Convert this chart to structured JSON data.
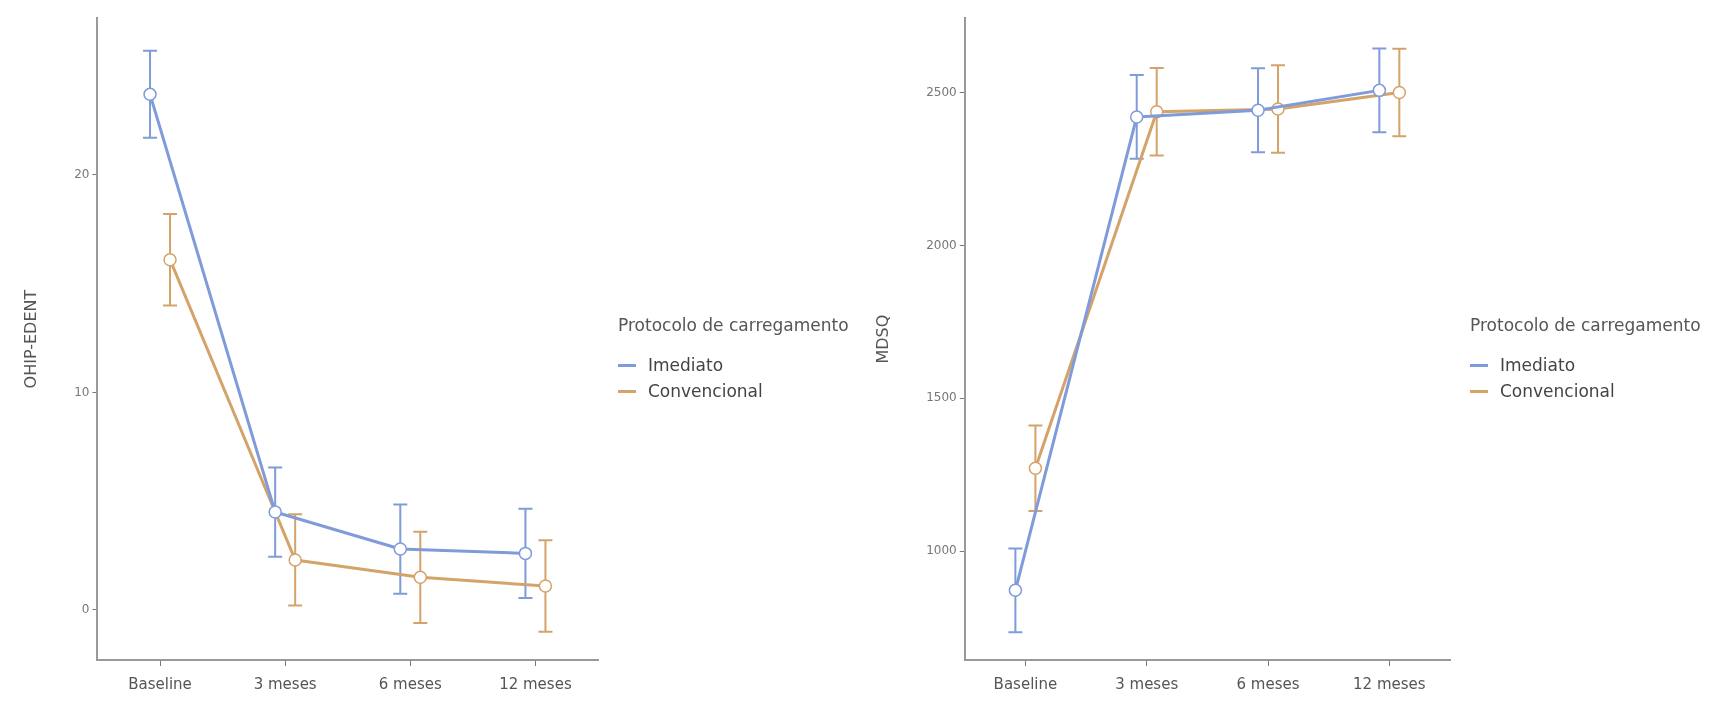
{
  "chart_data": [
    {
      "type": "line",
      "ylabel": "OHIP-EDENT",
      "categories": [
        "Baseline",
        "3 meses",
        "6 meses",
        "12 meses"
      ],
      "ylim": [
        -2.3,
        27.2
      ],
      "yticks": [
        0,
        10,
        20
      ],
      "legend": "right",
      "legend_title": "Protocolo de carregamento",
      "marker": "circle",
      "series": [
        {
          "name": "Imediato",
          "color": "#7f9bd9",
          "values": [
            23.7,
            4.5,
            2.8,
            2.6
          ],
          "errors": [
            2,
            2.05,
            2.05,
            2.05
          ]
        },
        {
          "name": "Convencional",
          "color": "#d4a36a",
          "values": [
            16.1,
            2.3,
            1.5,
            1.1
          ],
          "errors": [
            2.1,
            2.1,
            2.1,
            2.1
          ]
        }
      ]
    },
    {
      "type": "line",
      "ylabel": "MDSQ",
      "categories": [
        "Baseline",
        "3 meses",
        "6 meses",
        "12 meses"
      ],
      "ylim": [
        644,
        2743
      ],
      "yticks": [
        1000,
        1500,
        2000,
        2500
      ],
      "legend": "right",
      "legend_title": "Protocolo de carregamento",
      "marker": "circle",
      "series": [
        {
          "name": "Imediato",
          "color": "#7f9bd9",
          "values": [
            872,
            2420,
            2442,
            2507
          ],
          "errors": [
            137,
            137,
            137,
            137
          ]
        },
        {
          "name": "Convencional",
          "color": "#d4a36a",
          "values": [
            1271,
            2437,
            2446,
            2500
          ],
          "errors": [
            140,
            143,
            143,
            143
          ]
        }
      ]
    }
  ]
}
